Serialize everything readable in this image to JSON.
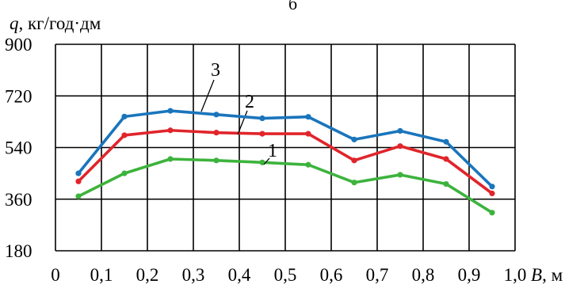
{
  "chart_data": {
    "type": "line",
    "ylabel_symbol": "q",
    "ylabel_unit": ", кг/год·дм",
    "xlabel_symbol": "B",
    "xlabel_unit": ", м",
    "top_fragment": "б",
    "xlim": [
      0,
      1.0
    ],
    "ylim": [
      180,
      900
    ],
    "x_ticks": [
      "0",
      "0,1",
      "0,2",
      "0,3",
      "0,4",
      "0,5",
      "0,6",
      "0,7",
      "0,8",
      "0,9",
      "1,0"
    ],
    "y_ticks": [
      "180",
      "360",
      "540",
      "720",
      "900"
    ],
    "grid": true,
    "x": [
      0.05,
      0.15,
      0.25,
      0.35,
      0.45,
      0.55,
      0.65,
      0.75,
      0.85,
      0.95
    ],
    "series": [
      {
        "name": "1",
        "color": "#3db33d",
        "values": [
          370,
          450,
          500,
          495,
          488,
          480,
          418,
          445,
          413,
          313
        ]
      },
      {
        "name": "2",
        "color": "#e0252b",
        "values": [
          422,
          583,
          600,
          592,
          588,
          588,
          495,
          545,
          500,
          380
        ]
      },
      {
        "name": "3",
        "color": "#1a75bc",
        "values": [
          450,
          648,
          668,
          655,
          642,
          647,
          568,
          598,
          560,
          404
        ]
      }
    ]
  }
}
